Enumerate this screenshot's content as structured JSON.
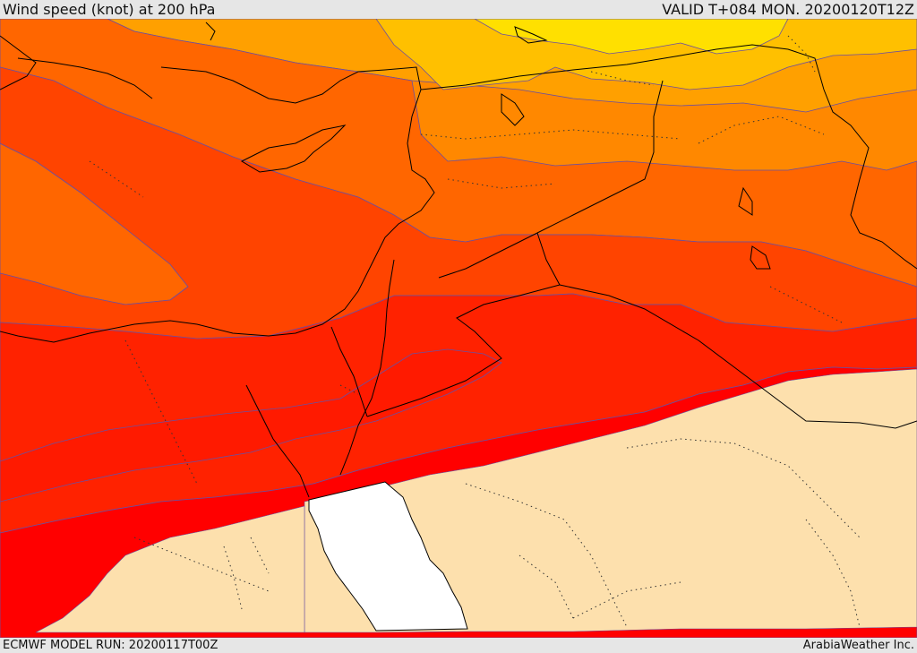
{
  "header": {
    "title": "Wind speed (knot) at 200 hPa",
    "valid": "VALID T+084 MON. 20200120T12Z"
  },
  "footer": {
    "model_run": "ECMWF MODEL RUN: 20200117T00Z",
    "credit": "ArabiaWeather Inc."
  },
  "legend_colors": {
    "band_1": "#ffe000",
    "band_2": "#ffc000",
    "band_3": "#ffa000",
    "band_4": "#ff8800",
    "band_5": "#ff6600",
    "band_6": "#ff4400",
    "band_7": "#ff2200",
    "band_8": "#ff0000",
    "calm_land": "#fde0ad",
    "masked_sea": "#ffffff",
    "contour_line": "#6b4fa0",
    "coastline": "#000000"
  }
}
